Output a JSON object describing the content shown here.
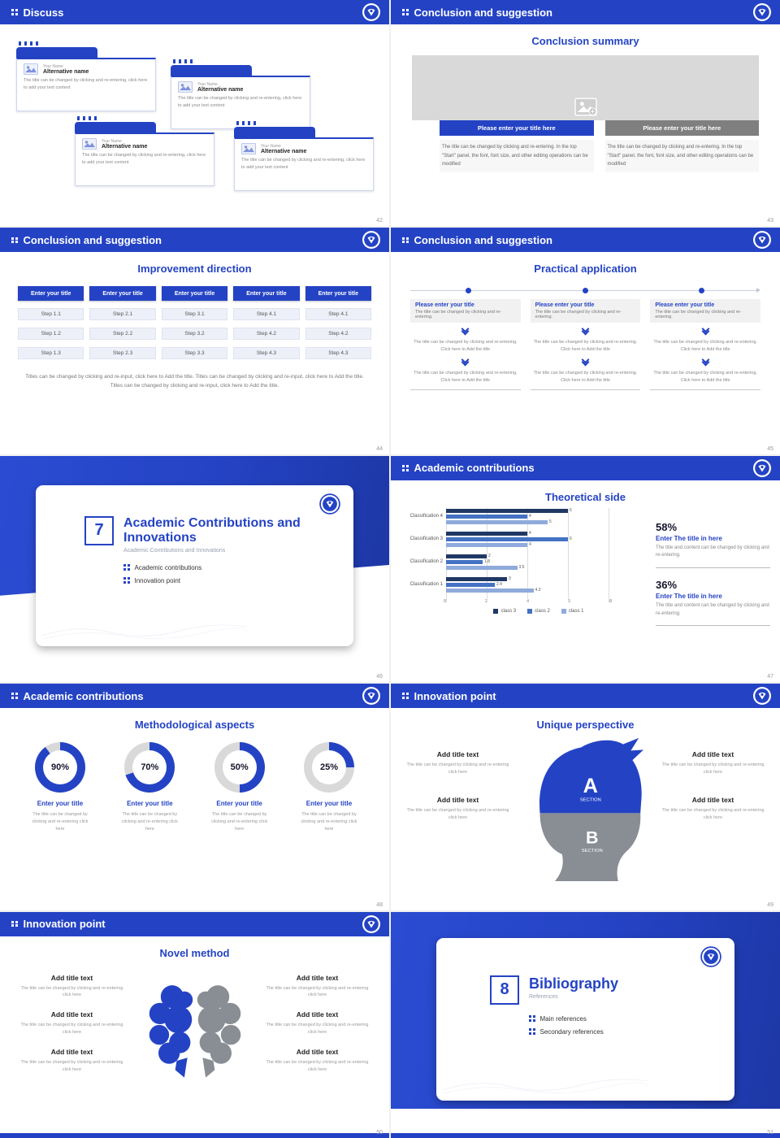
{
  "theme": {
    "primary": "#2443c4",
    "navy": "#1f3864",
    "mid_blue": "#4472c4",
    "light_blue": "#8faadc",
    "gray_button": "#7f7f7f",
    "placeholder_gray": "#d9d9d9"
  },
  "icons": {
    "grid_dots": "four-square grid (CSS shape)",
    "logo": "circular emblem with shield mark (SVG)",
    "image_placeholder": "picture icon (SVG)",
    "double_chevron_down": "two stacked chevrons (CSS shape)"
  },
  "slides": {
    "discuss": {
      "header": "Discuss",
      "page": "42",
      "cards": [
        {
          "name": "Your Name",
          "alt": "Alternative name",
          "desc": "The title can be changed by clicking and re-entering, click here to add your text content"
        },
        {
          "name": "Your Name",
          "alt": "Alternative name",
          "desc": "The title can be changed by clicking and re-entering, click here to add your text content"
        },
        {
          "name": "Your Name",
          "alt": "Alternative name",
          "desc": "The title can be changed by clicking and re-entering, click here to add your text content"
        },
        {
          "name": "Your Name",
          "alt": "Alternative name",
          "desc": "The title can be changed by clicking and re-entering, click here to add your text content"
        }
      ]
    },
    "summary": {
      "header": "Conclusion and suggestion",
      "title": "Conclusion summary",
      "page": "43",
      "button_blue": "Please enter your title here",
      "button_gray": "Please enter your title here",
      "para_left": "The title can be changed by clicking and re-entering. In the top \"Start\" panel, the font, font size, and other editing operations can be modified",
      "para_right": "The title can be changed by clicking and re-entering. In the top \"Start\" panel, the font, font size, and other editing operations can be modified"
    },
    "improvement": {
      "header": "Conclusion and suggestion",
      "title": "Improvement direction",
      "page": "44",
      "columns": [
        {
          "btn": "Enter your title",
          "steps": [
            "Step 1.1",
            "Step 1.2",
            "Step 1.3"
          ]
        },
        {
          "btn": "Enter your title",
          "steps": [
            "Step 2.1",
            "Step 2.2",
            "Step 2.3"
          ]
        },
        {
          "btn": "Enter your title",
          "steps": [
            "Step 3.1",
            "Step 3.2",
            "Step 3.3"
          ]
        },
        {
          "btn": "Enter your title",
          "steps": [
            "Step 4.1",
            "Step 4.2",
            "Step 4.3"
          ]
        },
        {
          "btn": "Enter your title",
          "steps": [
            "Step 4.1",
            "Step 4.2",
            "Step 4.3"
          ]
        }
      ],
      "footer": "Titles can be changed by clicking and re-input, click here to Add the title. Titles can be changed by clicking and re-input, click here to Add the title. Titles can be changed by clicking and re-input, click here to Add the title."
    },
    "practical": {
      "header": "Conclusion and suggestion",
      "title": "Practical application",
      "page": "45",
      "columns": [
        {
          "title": "Please enter your title",
          "sub": "The title can be changed by clicking and re-entering.",
          "body1": "The title can be changed by clicking and re-entering. Click here to Add the title",
          "body2": "The title can be changed by clicking and re-entering. Click here to Add the title"
        },
        {
          "title": "Please enter your title",
          "sub": "The title can be changed by clicking and re-entering.",
          "body1": "The title can be changed by clicking and re-entering. Click here to Add the title",
          "body2": "The title can be changed by clicking and re-entering. Click here to Add the title"
        },
        {
          "title": "Please enter your title",
          "sub": "The title can be changed by clicking and re-entering.",
          "body1": "The title can be changed by clicking and re-entering. Click here to Add the title",
          "body2": "The title can be changed by clicking and re-entering. Click here to Add the title"
        }
      ]
    },
    "section7": {
      "number": "7",
      "title": "Academic Contributions and Innovations",
      "subtitle": "Academic Contributions and Innovations",
      "bullet1": "Academic contributions",
      "bullet2": "Innovation point",
      "page": "46"
    },
    "theoretical": {
      "header": "Academic contributions",
      "title": "Theoretical side",
      "page": "47",
      "stat1_pct": "58%",
      "stat1_title": "Enter The title in here",
      "stat1_desc": "The title and content can be changed by clicking and re-entering.",
      "stat2_pct": "36%",
      "stat2_title": "Enter The title in here",
      "stat2_desc": "The title and content can be changed by clicking and re-entering."
    },
    "methodological": {
      "header": "Academic contributions",
      "title": "Methodological aspects",
      "page": "48",
      "donuts": [
        {
          "pct": 90,
          "label": "90%",
          "title": "Enter your title",
          "desc": "The title can be changed by clicking and re-entering click here"
        },
        {
          "pct": 70,
          "label": "70%",
          "title": "Enter your title",
          "desc": "The title can be changed by clicking and re-entering click here"
        },
        {
          "pct": 50,
          "label": "50%",
          "title": "Enter your title",
          "desc": "The title can be changed by clicking and re-entering click here"
        },
        {
          "pct": 25,
          "label": "25%",
          "title": "Enter your title",
          "desc": "The title can be changed by clicking and re-entering click here"
        }
      ]
    },
    "unique": {
      "header": "Innovation point",
      "title": "Unique perspective",
      "page": "49",
      "a": "A",
      "a_sub": "SECTION",
      "b": "B",
      "b_sub": "SECTION",
      "items": [
        {
          "title": "Add title text",
          "desc": "The title can be changed by clicking and re-entering click here"
        },
        {
          "title": "Add title text",
          "desc": "The title can be changed by clicking and re-entering click here"
        },
        {
          "title": "Add title text",
          "desc": "The title can be changed by clicking and re-entering click here"
        },
        {
          "title": "Add title text",
          "desc": "The title can be changed by clicking and re-entering click here"
        }
      ]
    },
    "novel": {
      "header": "Innovation point",
      "title": "Novel method",
      "page": "50",
      "items": [
        {
          "title": "Add title text",
          "desc": "The title can be changed by clicking and re-entering click here"
        },
        {
          "title": "Add title text",
          "desc": "The title can be changed by clicking and re-entering click here"
        },
        {
          "title": "Add title text",
          "desc": "The title can be changed by clicking and re-entering click here"
        },
        {
          "title": "Add title text",
          "desc": "The title can be changed by clicking and re-entering click here"
        },
        {
          "title": "Add title text",
          "desc": "The title can be changed by clicking and re-entering click here"
        },
        {
          "title": "Add title text",
          "desc": "The title can be changed by clicking and re-entering click here"
        }
      ]
    },
    "section8": {
      "number": "8",
      "title": "Bibliography",
      "subtitle": "References",
      "bullet1": "Main references",
      "bullet2": "Secondary references",
      "page": "51"
    }
  },
  "chart_data": {
    "type": "bar",
    "orientation": "horizontal",
    "title": "Theoretical side",
    "categories": [
      "Classification 1",
      "Classification 2",
      "Classification 3",
      "Classification 4"
    ],
    "series": [
      {
        "name": "class 1",
        "color": "#8faadc",
        "values": [
          4.3,
          3.5,
          4,
          5
        ]
      },
      {
        "name": "class 2",
        "color": "#4472c4",
        "values": [
          2.4,
          1.8,
          6,
          4
        ]
      },
      {
        "name": "class 3",
        "color": "#1f3864",
        "values": [
          3,
          2,
          4,
          6
        ]
      }
    ],
    "xlim": [
      0,
      8
    ],
    "xticks": [
      0,
      2,
      4,
      6,
      8
    ],
    "grid": true,
    "legend_position": "bottom",
    "legend": [
      "class 3",
      "class 2",
      "class 1"
    ]
  }
}
